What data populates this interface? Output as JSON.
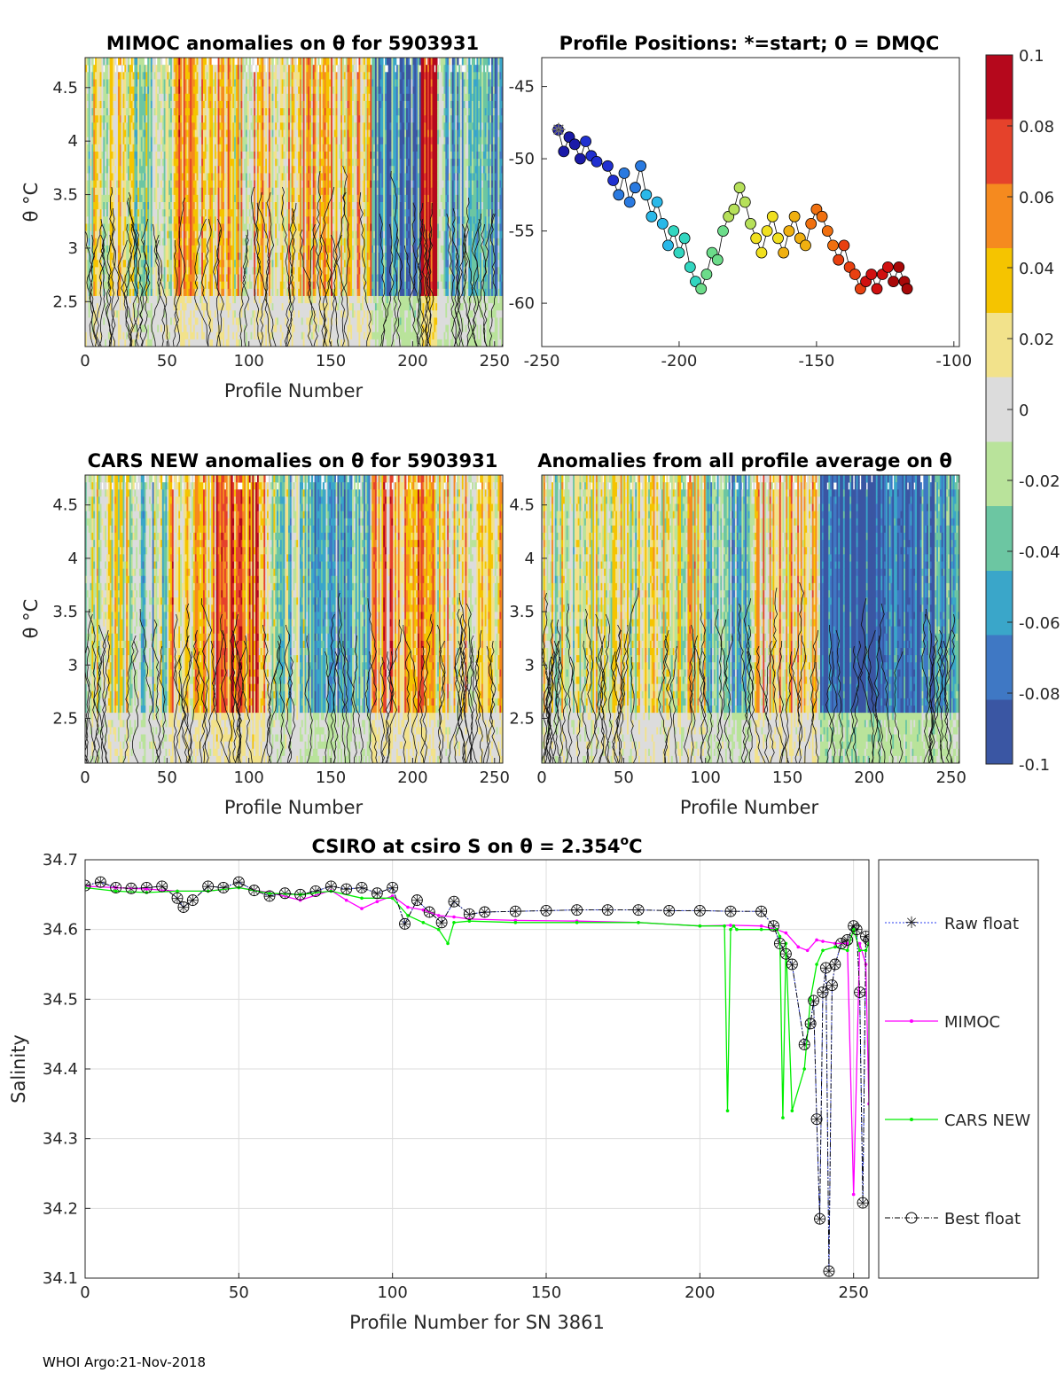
{
  "colors": {
    "raw": "#2a3cf0",
    "mimoc": "#ff00ff",
    "cars": "#00ee00",
    "best": "#000000",
    "colormap": [
      "#3a56a3",
      "#3f78c4",
      "#3aa6c9",
      "#6cc6a2",
      "#b9e39b",
      "#dcdcdc",
      "#f2e28b",
      "#f5c400",
      "#f58a1f",
      "#e5422b",
      "#b5081c"
    ]
  },
  "footer": "WHOI Argo:21-Nov-2018",
  "colorbar": {
    "ticks": [
      "0.1",
      "0.08",
      "0.06",
      "0.04",
      "0.02",
      "0",
      "-0.02",
      "-0.04",
      "-0.06",
      "-0.08",
      "-0.1"
    ],
    "range": [
      -0.1,
      0.1
    ]
  },
  "chart_data": [
    {
      "id": "mimoc",
      "type": "heatmap",
      "title": "MIMOC anomalies on θ  for 5903931",
      "xlabel": "Profile Number",
      "ylabel": "θ °C",
      "xlim": [
        0,
        255
      ],
      "ylim": [
        2.08,
        4.78
      ],
      "xticks": [
        "0",
        "50",
        "100",
        "150",
        "200",
        "250"
      ],
      "yticks": [
        "2.5",
        "3",
        "3.5",
        "4",
        "4.5"
      ],
      "description_bands": [
        {
          "x": [
            0,
            30
          ],
          "value": 0.005
        },
        {
          "x": [
            30,
            55
          ],
          "value": -0.01
        },
        {
          "x": [
            55,
            70
          ],
          "value": 0.04
        },
        {
          "x": [
            70,
            90
          ],
          "value": 0.03
        },
        {
          "x": [
            90,
            120
          ],
          "value": 0.02
        },
        {
          "x": [
            120,
            175
          ],
          "value": 0.03
        },
        {
          "x": [
            175,
            205
          ],
          "value": -0.06
        },
        {
          "x": [
            205,
            215
          ],
          "value": 0.1
        },
        {
          "x": [
            215,
            255
          ],
          "value": -0.04
        }
      ]
    },
    {
      "id": "positions",
      "type": "scatter",
      "title": "Profile Positions: *=start; 0 = DMQC",
      "xlim": [
        -250,
        -98
      ],
      "ylim": [
        -63,
        -43
      ],
      "xticks": [
        "-250",
        "-200",
        "-150",
        "-100"
      ],
      "yticks": [
        "-45",
        "-50",
        "-55",
        "-60"
      ],
      "track": [
        [
          -244,
          -48.0
        ],
        [
          -242,
          -49.5
        ],
        [
          -240,
          -48.5
        ],
        [
          -238,
          -49.0
        ],
        [
          -236,
          -50.0
        ],
        [
          -234,
          -48.8
        ],
        [
          -232,
          -49.8
        ],
        [
          -230,
          -50.2
        ],
        [
          -226,
          -50.5
        ],
        [
          -224,
          -51.5
        ],
        [
          -222,
          -52.5
        ],
        [
          -220,
          -51.0
        ],
        [
          -218,
          -53.0
        ],
        [
          -216,
          -52.0
        ],
        [
          -214,
          -50.5
        ],
        [
          -212,
          -52.5
        ],
        [
          -210,
          -54.0
        ],
        [
          -208,
          -53.0
        ],
        [
          -206,
          -54.5
        ],
        [
          -204,
          -56.0
        ],
        [
          -202,
          -55.0
        ],
        [
          -200,
          -56.5
        ],
        [
          -198,
          -55.5
        ],
        [
          -196,
          -57.5
        ],
        [
          -194,
          -58.5
        ],
        [
          -192,
          -59.0
        ],
        [
          -190,
          -58.0
        ],
        [
          -188,
          -56.5
        ],
        [
          -186,
          -57.0
        ],
        [
          -184,
          -55.0
        ],
        [
          -182,
          -54.0
        ],
        [
          -180,
          -53.5
        ],
        [
          -178,
          -52.0
        ],
        [
          -176,
          -53.0
        ],
        [
          -174,
          -54.5
        ],
        [
          -172,
          -55.5
        ],
        [
          -170,
          -56.5
        ],
        [
          -168,
          -55.0
        ],
        [
          -166,
          -54.0
        ],
        [
          -164,
          -55.5
        ],
        [
          -162,
          -56.5
        ],
        [
          -160,
          -55.0
        ],
        [
          -158,
          -54.0
        ],
        [
          -156,
          -55.5
        ],
        [
          -154,
          -56.0
        ],
        [
          -152,
          -54.5
        ],
        [
          -150,
          -53.5
        ],
        [
          -148,
          -54.0
        ],
        [
          -146,
          -55.0
        ],
        [
          -144,
          -56.0
        ],
        [
          -142,
          -57.0
        ],
        [
          -140,
          -56.0
        ],
        [
          -138,
          -57.5
        ],
        [
          -136,
          -58.0
        ],
        [
          -134,
          -59.0
        ],
        [
          -132,
          -58.5
        ],
        [
          -130,
          -58.0
        ],
        [
          -128,
          -59.0
        ],
        [
          -126,
          -58.0
        ],
        [
          -124,
          -57.5
        ],
        [
          -122,
          -58.5
        ],
        [
          -120,
          -57.5
        ],
        [
          -118,
          -58.5
        ],
        [
          -117,
          -59.0
        ]
      ]
    },
    {
      "id": "cars",
      "type": "heatmap",
      "title": "CARS NEW anomalies on θ for 5903931",
      "xlabel": "Profile Number",
      "ylabel": "θ °C",
      "xlim": [
        0,
        255
      ],
      "ylim": [
        2.08,
        4.78
      ],
      "xticks": [
        "0",
        "50",
        "100",
        "150",
        "200",
        "250"
      ],
      "yticks": [
        "2.5",
        "3",
        "3.5",
        "4",
        "4.5"
      ],
      "description_bands": [
        {
          "x": [
            0,
            30
          ],
          "value": 0.01
        },
        {
          "x": [
            30,
            50
          ],
          "value": -0.02
        },
        {
          "x": [
            50,
            80
          ],
          "value": 0.03
        },
        {
          "x": [
            80,
            110
          ],
          "value": 0.06
        },
        {
          "x": [
            110,
            140
          ],
          "value": -0.02
        },
        {
          "x": [
            140,
            175
          ],
          "value": -0.04
        },
        {
          "x": [
            175,
            210
          ],
          "value": 0.04
        },
        {
          "x": [
            210,
            255
          ],
          "value": 0.02
        }
      ]
    },
    {
      "id": "allavg",
      "type": "heatmap",
      "title": "Anomalies from all profile average on θ",
      "xlabel": "Profile Number",
      "xlim": [
        0,
        255
      ],
      "ylim": [
        2.08,
        4.78
      ],
      "xticks": [
        "0",
        "50",
        "100",
        "150",
        "200",
        "250"
      ],
      "yticks": [
        "2.5",
        "3",
        "3.5",
        "4",
        "4.5"
      ],
      "description_bands": [
        {
          "x": [
            0,
            60
          ],
          "value": 0.005
        },
        {
          "x": [
            60,
            100
          ],
          "value": 0.01
        },
        {
          "x": [
            100,
            130
          ],
          "value": -0.04
        },
        {
          "x": [
            130,
            170
          ],
          "value": 0.03
        },
        {
          "x": [
            170,
            230
          ],
          "value": -0.09
        },
        {
          "x": [
            230,
            255
          ],
          "value": -0.07
        }
      ]
    },
    {
      "id": "salinity",
      "type": "line",
      "title": "CSIRO at csiro S on θ = 2.354",
      "title_sup": "o",
      "title_tail": "C",
      "xlabel": "Profile Number for SN 3861",
      "ylabel": "Salinity",
      "xlim": [
        0,
        255
      ],
      "ylim": [
        34.1,
        34.7
      ],
      "xticks": [
        "0",
        "50",
        "100",
        "150",
        "200",
        "250"
      ],
      "yticks": [
        "34.1",
        "34.2",
        "34.3",
        "34.4",
        "34.5",
        "34.6",
        "34.7"
      ],
      "legend": [
        "Raw float",
        "MIMOC",
        "CARS NEW",
        "Best float"
      ],
      "series": [
        {
          "name": "Raw float",
          "x": [
            0,
            5,
            10,
            15,
            20,
            25,
            30,
            32,
            35,
            40,
            45,
            50,
            55,
            60,
            65,
            70,
            75,
            80,
            85,
            90,
            95,
            100,
            104,
            108,
            112,
            116,
            120,
            125,
            130,
            140,
            150,
            160,
            170,
            180,
            190,
            200,
            210,
            220,
            224,
            226,
            228,
            230,
            234,
            236,
            237,
            238,
            239,
            240,
            241,
            242,
            243,
            244,
            246,
            248,
            250,
            251,
            252,
            253,
            254,
            255
          ],
          "y": [
            34.663,
            34.668,
            34.66,
            34.659,
            34.66,
            34.662,
            34.645,
            34.632,
            34.642,
            34.662,
            34.66,
            34.668,
            34.656,
            34.648,
            34.652,
            34.65,
            34.655,
            34.662,
            34.658,
            34.66,
            34.652,
            34.66,
            34.608,
            34.642,
            34.625,
            34.61,
            34.64,
            34.622,
            34.625,
            34.626,
            34.627,
            34.628,
            34.628,
            34.628,
            34.627,
            34.627,
            34.626,
            34.626,
            34.605,
            34.58,
            34.565,
            34.55,
            34.435,
            34.465,
            34.498,
            34.328,
            34.185,
            34.51,
            34.545,
            34.11,
            34.52,
            34.55,
            34.58,
            34.585,
            34.605,
            34.6,
            34.51,
            34.208,
            34.59,
            34.585
          ]
        },
        {
          "name": "MIMOC",
          "x": [
            0,
            10,
            20,
            30,
            40,
            50,
            60,
            70,
            80,
            85,
            90,
            95,
            100,
            105,
            110,
            115,
            120,
            125,
            140,
            160,
            180,
            200,
            210,
            220,
            225,
            228,
            232,
            235,
            238,
            240,
            244,
            248,
            250,
            252,
            254,
            255
          ],
          "y": [
            34.662,
            34.66,
            34.658,
            34.655,
            34.655,
            34.66,
            34.653,
            34.642,
            34.656,
            34.642,
            34.63,
            34.64,
            34.648,
            34.632,
            34.628,
            34.62,
            34.618,
            34.615,
            34.613,
            34.612,
            34.61,
            34.605,
            34.606,
            34.605,
            34.6,
            34.595,
            34.575,
            34.57,
            34.585,
            34.583,
            34.58,
            34.58,
            34.22,
            34.58,
            34.55,
            34.35
          ]
        },
        {
          "name": "CARS NEW",
          "x": [
            0,
            10,
            20,
            30,
            40,
            50,
            60,
            70,
            80,
            90,
            100,
            105,
            110,
            115,
            118,
            120,
            125,
            140,
            160,
            180,
            200,
            208,
            209,
            210,
            211,
            212,
            220,
            225,
            226,
            227,
            228,
            230,
            234,
            236,
            238,
            240,
            244,
            248,
            250,
            252,
            254,
            255
          ],
          "y": [
            34.66,
            34.655,
            34.653,
            34.655,
            34.655,
            34.66,
            34.652,
            34.65,
            34.655,
            34.645,
            34.645,
            34.62,
            34.61,
            34.6,
            34.58,
            34.61,
            34.612,
            34.61,
            34.61,
            34.61,
            34.605,
            34.605,
            34.34,
            34.6,
            34.605,
            34.6,
            34.6,
            34.6,
            34.59,
            34.33,
            34.58,
            34.34,
            34.4,
            34.5,
            34.55,
            34.57,
            34.575,
            34.57,
            34.6,
            34.57,
            34.57,
            34.58
          ]
        },
        {
          "name": "Best float",
          "x": [
            0,
            5,
            10,
            15,
            20,
            25,
            30,
            32,
            35,
            40,
            45,
            50,
            55,
            60,
            65,
            70,
            75,
            80,
            85,
            90,
            95,
            100,
            104,
            108,
            112,
            116,
            120,
            125,
            130,
            140,
            150,
            160,
            170,
            180,
            190,
            200,
            210,
            220,
            224,
            226,
            228,
            230,
            234,
            236,
            237,
            238,
            239,
            240,
            241,
            242,
            243,
            244,
            246,
            248,
            250,
            251,
            252,
            253,
            254,
            255
          ],
          "y": [
            34.663,
            34.668,
            34.66,
            34.659,
            34.66,
            34.662,
            34.645,
            34.632,
            34.642,
            34.662,
            34.66,
            34.668,
            34.656,
            34.648,
            34.652,
            34.65,
            34.655,
            34.662,
            34.658,
            34.66,
            34.652,
            34.66,
            34.608,
            34.642,
            34.625,
            34.61,
            34.64,
            34.622,
            34.625,
            34.626,
            34.627,
            34.628,
            34.628,
            34.628,
            34.627,
            34.627,
            34.626,
            34.626,
            34.605,
            34.58,
            34.565,
            34.55,
            34.435,
            34.465,
            34.498,
            34.328,
            34.185,
            34.51,
            34.545,
            34.11,
            34.52,
            34.55,
            34.58,
            34.585,
            34.605,
            34.6,
            34.51,
            34.208,
            34.59,
            34.585
          ]
        }
      ]
    }
  ]
}
